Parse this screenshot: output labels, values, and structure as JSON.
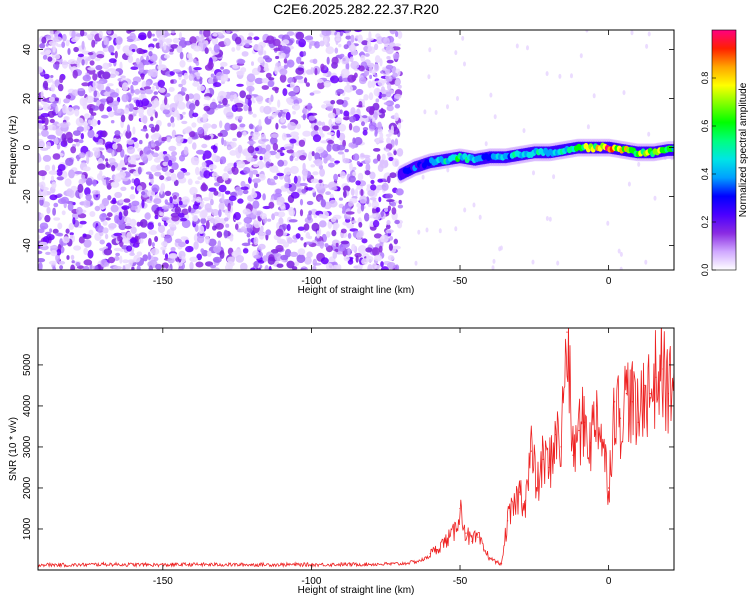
{
  "title": "C2E6.2025.282.22.37.R20",
  "chart_data": [
    {
      "type": "heatmap",
      "xlabel": "Height of straight line (km)",
      "ylabel": "Frequency (Hz)",
      "xlim": [
        -192,
        22
      ],
      "ylim": [
        -50,
        48
      ],
      "xticks": [
        -150,
        -100,
        -50,
        0
      ],
      "yticks": [
        -40,
        -20,
        0,
        20,
        40
      ],
      "colorbar": {
        "label": "Normalized spectral amplitude",
        "range": [
          0,
          1
        ],
        "ticks": [
          "0.0",
          "0.2",
          "0.4",
          "0.6",
          "0.8"
        ],
        "colors": [
          "#ffffff",
          "#d0a8ff",
          "#8a2be2",
          "#4b00ff",
          "#0000ff",
          "#00a0ff",
          "#00e5e5",
          "#00ff7f",
          "#00ff00",
          "#7fff00",
          "#ffff00",
          "#ffa500",
          "#ff2000",
          "#ff0080"
        ]
      },
      "noise_region": {
        "x": [
          -192,
          -70
        ],
        "frequency": [
          -50,
          48
        ]
      },
      "signal_trace": {
        "x": [
          -70,
          -65,
          -60,
          -55,
          -50,
          -45,
          -40,
          -35,
          -30,
          -25,
          -20,
          -15,
          -10,
          -5,
          0,
          5,
          10,
          15,
          20,
          22
        ],
        "frequency": [
          -11,
          -8,
          -6,
          -5,
          -4,
          -5,
          -4,
          -4,
          -3,
          -2,
          -2,
          -1,
          0,
          0,
          0,
          -1,
          -2,
          -2,
          -1,
          -1
        ],
        "amplitude": [
          0.25,
          0.3,
          0.35,
          0.45,
          0.55,
          0.45,
          0.35,
          0.45,
          0.45,
          0.5,
          0.45,
          0.5,
          0.6,
          0.7,
          0.85,
          0.75,
          0.65,
          0.7,
          0.55,
          0.5
        ]
      }
    },
    {
      "type": "line",
      "xlabel": "Height of straight line (km)",
      "ylabel": "SNR (10 * v/v)",
      "xlim": [
        -192,
        22
      ],
      "ylim": [
        0,
        5900
      ],
      "xticks": [
        -150,
        -100,
        -50,
        0
      ],
      "yticks": [
        1000,
        2000,
        3000,
        4000,
        5000
      ],
      "series": [
        {
          "color": "#ee2222",
          "x": [
            -192,
            -180,
            -170,
            -160,
            -150,
            -140,
            -130,
            -120,
            -110,
            -100,
            -90,
            -80,
            -70,
            -65,
            -62,
            -60,
            -58,
            -55,
            -52,
            -50,
            -48,
            -46,
            -44,
            -42,
            -40,
            -38,
            -36,
            -34,
            -32,
            -30,
            -28,
            -26,
            -24,
            -22,
            -20,
            -18,
            -16,
            -14,
            -12,
            -10,
            -8,
            -6,
            -4,
            -2,
            0,
            2,
            4,
            6,
            8,
            10,
            12,
            14,
            16,
            18,
            20,
            22
          ],
          "y": [
            130,
            120,
            140,
            130,
            125,
            135,
            130,
            128,
            132,
            130,
            135,
            140,
            150,
            200,
            260,
            400,
            500,
            700,
            900,
            1500,
            900,
            700,
            800,
            500,
            300,
            200,
            150,
            1200,
            1500,
            1900,
            1700,
            2900,
            2000,
            2700,
            2500,
            3300,
            3000,
            5800,
            2800,
            3400,
            3600,
            3100,
            4000,
            3100,
            2000,
            4100,
            3700,
            4300,
            4100,
            3600,
            4500,
            4300,
            4700,
            4900,
            4300,
            5000
          ]
        }
      ]
    }
  ]
}
